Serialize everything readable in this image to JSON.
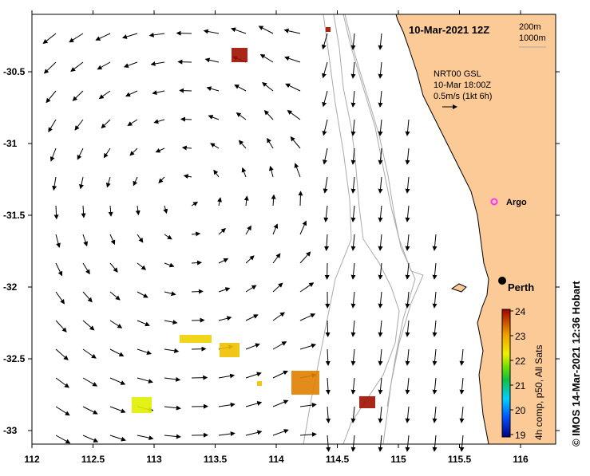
{
  "title": "10-Mar-2021 12Z",
  "depth_legend": {
    "contour1": "200m",
    "contour2": "1000m"
  },
  "current_legend": {
    "line1": "NRT00 GSL",
    "line2": "10-Mar 18:00Z",
    "line3": "0.5m/s (1kt 6h)"
  },
  "places": {
    "argo": "Argo",
    "city": "Perth"
  },
  "x_ticks": [
    "112",
    "112.5",
    "113",
    "113.5",
    "114",
    "114.5",
    "115",
    "115.5",
    "116"
  ],
  "y_ticks": [
    "-30.5",
    "-31",
    "-31.5",
    "-32",
    "-32.5",
    "-33"
  ],
  "colorbar": {
    "label": "4h comp, p50, All Sats",
    "ticks": [
      "24",
      "23",
      "22",
      "21",
      "20",
      "19"
    ],
    "range": [
      19,
      24
    ]
  },
  "credit": "© IMOS 14-Mar-2021 12:36 Hobart",
  "colors": {
    "land": "#fcca96",
    "contour": "#aaaaaa",
    "argo": "#ff33ff"
  }
}
